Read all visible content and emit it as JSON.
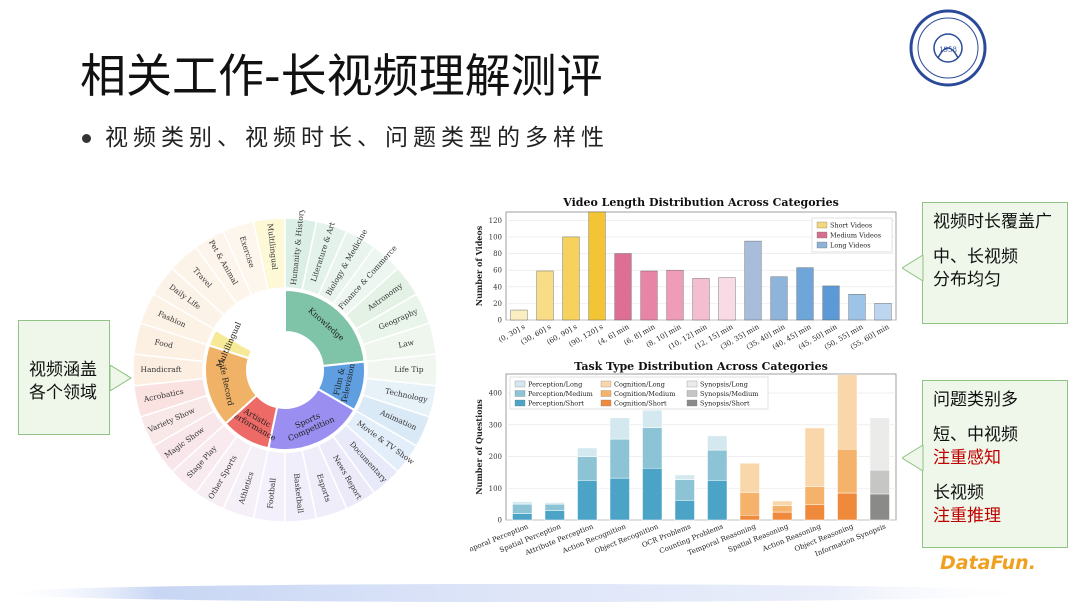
{
  "slide": {
    "title": "相关工作-长视频理解测评",
    "bullet": "视频类别、视频时长、问题类型的多样性"
  },
  "callouts": {
    "left": "视频涵盖\n各个领域",
    "right_top": [
      "视频时长覆盖广",
      "中、长视频",
      "分布均匀"
    ],
    "right_bottom": [
      "问题类别多",
      "短、中视频",
      "注重感知",
      "长视频",
      "注重推理"
    ]
  },
  "logos": {
    "university_year": "1958",
    "datafun": "DataFun."
  },
  "colors": {
    "short": "#f4d77a",
    "medium": "#d4708e",
    "long": "#8fb3d8",
    "callout_bg": "#eef7e9",
    "callout_border": "#8fc283",
    "accent_red": "#c00000"
  },
  "sunburst": {
    "inner": [
      {
        "label": "Knowledge",
        "color": "#7fc4a9",
        "size": 7
      },
      {
        "label": "Film & Television",
        "color": "#5f9ee0",
        "size": 3
      },
      {
        "label": "Sports Competition",
        "color": "#9a8ef0",
        "size": 6
      },
      {
        "label": "Artistic Performance",
        "color": "#ee6a66",
        "size": 3
      },
      {
        "label": "Life Record",
        "color": "#f0b267",
        "size": 5
      },
      {
        "label": "Multilingual",
        "color": "#f6ea98",
        "size": 1
      }
    ],
    "outer": [
      {
        "label": "Humanity & History",
        "color": "#dcefe6"
      },
      {
        "label": "Literature & Art",
        "color": "#e3f2ea"
      },
      {
        "label": "Biology & Medicine",
        "color": "#e8f4ed"
      },
      {
        "label": "Finance & Commerce",
        "color": "#edf6f0"
      },
      {
        "label": "Astronomy",
        "color": "#e4f2e6"
      },
      {
        "label": "Geography",
        "color": "#e9f4ea"
      },
      {
        "label": "Law",
        "color": "#eef6ee"
      },
      {
        "label": "Life Tip",
        "color": "#f1f7f0"
      },
      {
        "label": "Technology",
        "color": "#e6f1f8"
      },
      {
        "label": "Animation",
        "color": "#dae9f6"
      },
      {
        "label": "Movie & TV Show",
        "color": "#e2eef9"
      },
      {
        "label": "Documentary",
        "color": "#e8eaf9"
      },
      {
        "label": "News Report",
        "color": "#eceaf9"
      },
      {
        "label": "Esports",
        "color": "#efedfa"
      },
      {
        "label": "Basketball",
        "color": "#f1eefb"
      },
      {
        "label": "Football",
        "color": "#f3f0fb"
      },
      {
        "label": "Athletics",
        "color": "#f5eff8"
      },
      {
        "label": "Other Sports",
        "color": "#f7eef4"
      },
      {
        "label": "Stage Play",
        "color": "#f8eaef"
      },
      {
        "label": "Magic Show",
        "color": "#f8e6ea"
      },
      {
        "label": "Variety Show",
        "color": "#f9e8e8"
      },
      {
        "label": "Acrobatics",
        "color": "#f9e2e0"
      },
      {
        "label": "Handicraft",
        "color": "#fcefe2"
      },
      {
        "label": "Food",
        "color": "#fcf0e3"
      },
      {
        "label": "Fashion",
        "color": "#fcf2e6"
      },
      {
        "label": "Daily Life",
        "color": "#fcf3e8"
      },
      {
        "label": "Travel",
        "color": "#fdf4e9"
      },
      {
        "label": "Pet & Animal",
        "color": "#fdf5eb"
      },
      {
        "label": "Exercise",
        "color": "#fdf6ed"
      },
      {
        "label": "Multilingual",
        "color": "#fdf8d5"
      }
    ]
  },
  "chart_data": [
    {
      "type": "bar",
      "title": "Video Length Distribution Across Categories",
      "ylabel": "Number of Videos",
      "xlabel": "",
      "ylim": [
        0,
        130
      ],
      "yticks": [
        0,
        20,
        40,
        60,
        80,
        100,
        120
      ],
      "legend": "top-right",
      "legend_entries": [
        "Short Videos",
        "Medium Videos",
        "Long Videos"
      ],
      "categories": [
        "(0, 30] s",
        "(30, 60] s",
        "(60, 90] s",
        "(90, 120] s",
        "(4, 6] min",
        "(6, 8] min",
        "(8, 10] min",
        "(10, 12] min",
        "(12, 15] min",
        "(30, 35] min",
        "(35, 40] min",
        "(40, 45] min",
        "(45, 50] min",
        "(50, 55] min",
        "(55, 60] min"
      ],
      "values": [
        12,
        59,
        100,
        130,
        80,
        59,
        60,
        50,
        51,
        95,
        52,
        63,
        41,
        31,
        20
      ],
      "groups": [
        "short",
        "short",
        "short",
        "short",
        "medium",
        "medium",
        "medium",
        "medium",
        "medium",
        "long",
        "long",
        "long",
        "long",
        "long",
        "long"
      ],
      "bar_colors": [
        "#fbeec0",
        "#f8dd86",
        "#f6d25c",
        "#f3c534",
        "#dd6f95",
        "#e884a6",
        "#ee9cb8",
        "#f4bdd0",
        "#f9dbe6",
        "#a7bddb",
        "#8fb4da",
        "#6ea6d9",
        "#5b9ad6",
        "#9dc3e7",
        "#bcd6f0"
      ]
    },
    {
      "type": "bar",
      "stacked": true,
      "title": "Task Type Distribution Across Categories",
      "ylabel": "Number of Questions",
      "xlabel": "",
      "ylim": [
        0,
        460
      ],
      "yticks": [
        0,
        100,
        200,
        300,
        400
      ],
      "legend": "top-left",
      "categories": [
        "Temporal Perception",
        "Spatial Perception",
        "Attribute Perception",
        "Action Recognition",
        "Object Recognition",
        "OCR Problems",
        "Counting Problems",
        "Temporal Reasoning",
        "Spatial Reasoning",
        "Action Reasoning",
        "Object Reasoning",
        "Information Synopsis"
      ],
      "series": [
        {
          "name": "Perception/Short",
          "color": "#4ba3c5",
          "values": [
            20,
            30,
            125,
            132,
            163,
            62,
            125,
            0,
            0,
            0,
            0,
            0
          ]
        },
        {
          "name": "Perception/Medium",
          "color": "#8cc4d6",
          "values": [
            30,
            20,
            75,
            123,
            128,
            65,
            95,
            0,
            0,
            0,
            0,
            0
          ]
        },
        {
          "name": "Perception/Long",
          "color": "#d4e9ef",
          "values": [
            8,
            5,
            27,
            67,
            55,
            15,
            45,
            0,
            0,
            0,
            0,
            0
          ]
        },
        {
          "name": "Cognition/Short",
          "color": "#ef8a3c",
          "values": [
            0,
            0,
            0,
            0,
            0,
            0,
            0,
            15,
            25,
            48,
            85,
            0
          ]
        },
        {
          "name": "Cognition/Medium",
          "color": "#f5b26b",
          "values": [
            0,
            0,
            0,
            0,
            0,
            0,
            0,
            72,
            20,
            57,
            138,
            0
          ]
        },
        {
          "name": "Cognition/Long",
          "color": "#fad7ab",
          "values": [
            0,
            0,
            0,
            0,
            0,
            0,
            0,
            92,
            15,
            185,
            235,
            0
          ]
        },
        {
          "name": "Synopsis/Short",
          "color": "#8a8a88",
          "values": [
            0,
            0,
            0,
            0,
            0,
            0,
            0,
            0,
            0,
            0,
            0,
            82
          ]
        },
        {
          "name": "Synopsis/Medium",
          "color": "#c6c6c4",
          "values": [
            0,
            0,
            0,
            0,
            0,
            0,
            0,
            0,
            0,
            0,
            0,
            75
          ]
        },
        {
          "name": "Synopsis/Long",
          "color": "#ebebea",
          "values": [
            0,
            0,
            0,
            0,
            0,
            0,
            0,
            0,
            0,
            0,
            0,
            165
          ]
        }
      ]
    }
  ]
}
